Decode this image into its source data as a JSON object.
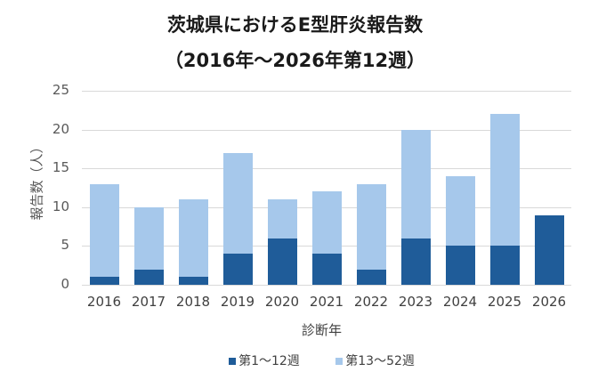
{
  "chart_data": {
    "type": "bar",
    "stacked": true,
    "title": "茨城県におけるE型肝炎報告数",
    "subtitle": "（2016年～2026年第12週）",
    "xlabel": "診断年",
    "ylabel": "報告数（人）",
    "ylim": [
      0,
      25
    ],
    "yticks": [
      0,
      5,
      10,
      15,
      20,
      25
    ],
    "grid": true,
    "legend_position": "bottom",
    "categories": [
      "2016",
      "2017",
      "2018",
      "2019",
      "2020",
      "2021",
      "2022",
      "2023",
      "2024",
      "2025",
      "2026"
    ],
    "series": [
      {
        "name": "第1～12週",
        "color": "#1f5c99",
        "values": [
          1,
          2,
          1,
          4,
          6,
          4,
          2,
          6,
          5,
          5,
          9
        ]
      },
      {
        "name": "第13～52週",
        "color": "#a6c8eb",
        "values": [
          12,
          8,
          10,
          13,
          5,
          8,
          11,
          14,
          9,
          17,
          0
        ]
      }
    ]
  }
}
